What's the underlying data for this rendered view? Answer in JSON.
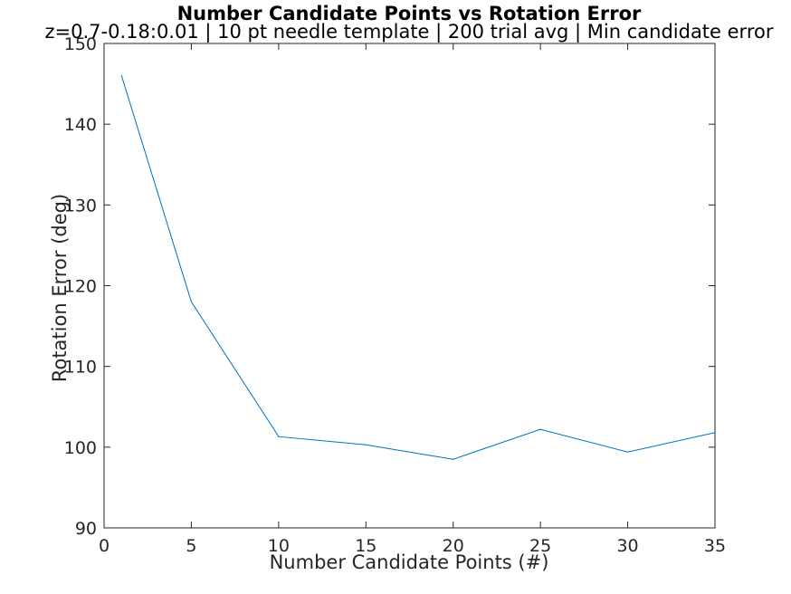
{
  "chart_data": {
    "type": "line",
    "title": "Number Candidate Points vs Rotation Error",
    "subtitle": "z=0.7-0.18:0.01 | 10 pt needle template | 200 trial avg | Min candidate error",
    "xlabel": "Number Candidate Points (#)",
    "ylabel": "Rotation Error (deg)",
    "xlim": [
      0,
      35
    ],
    "ylim": [
      90,
      150
    ],
    "xticks": [
      0,
      5,
      10,
      15,
      20,
      25,
      30,
      35
    ],
    "yticks": [
      90,
      100,
      110,
      120,
      130,
      140,
      150
    ],
    "grid": false,
    "series": [
      {
        "color": "#0072BD",
        "x": [
          1,
          5,
          10,
          15,
          20,
          25,
          30,
          35
        ],
        "y": [
          146.0,
          118.0,
          101.3,
          100.3,
          98.5,
          102.2,
          99.4,
          101.8
        ]
      }
    ]
  }
}
